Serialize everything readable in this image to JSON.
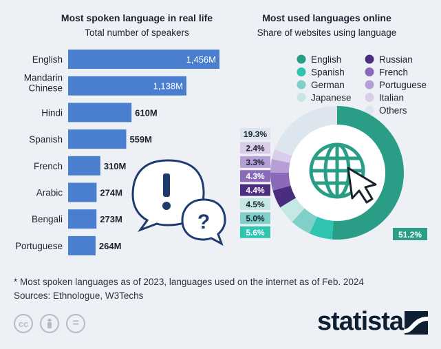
{
  "chart_data": [
    {
      "type": "bar",
      "orientation": "horizontal",
      "title": "Most spoken language in real life",
      "subtitle": "Total number of speakers",
      "categories": [
        "English",
        "Mandarin Chinese",
        "Hindi",
        "Spanish",
        "French",
        "Arabic",
        "Bengali",
        "Portuguese"
      ],
      "category_lines": [
        [
          "English"
        ],
        [
          "Mandarin",
          "Chinese"
        ],
        [
          "Hindi"
        ],
        [
          "Spanish"
        ],
        [
          "French"
        ],
        [
          "Arabic"
        ],
        [
          "Bengali"
        ],
        [
          "Portuguese"
        ]
      ],
      "values": [
        1456,
        1138,
        610,
        559,
        310,
        274,
        273,
        264
      ],
      "value_labels": [
        "1,456M",
        "1,138M",
        "610M",
        "559M",
        "310M",
        "274M",
        "273M",
        "264M"
      ],
      "color": "#4a7fcf"
    },
    {
      "type": "pie",
      "donut": true,
      "title": "Most used languages online",
      "subtitle": "Share of websites using language",
      "labels": [
        "English",
        "Spanish",
        "German",
        "Japanese",
        "Russian",
        "French",
        "Portuguese",
        "Italian",
        "Others"
      ],
      "values": [
        51.2,
        5.6,
        5.0,
        4.5,
        4.4,
        4.3,
        3.3,
        2.4,
        19.3
      ],
      "value_labels": [
        "51.2%",
        "5.6%",
        "5.0%",
        "4.5%",
        "4.4%",
        "4.3%",
        "3.3%",
        "2.4%",
        "19.3%"
      ],
      "colors": [
        "#2a9d86",
        "#2ec4b0",
        "#7fd0c8",
        "#c5e8e5",
        "#4b2d7f",
        "#8a6ab8",
        "#b59fd6",
        "#d9cdea",
        "#dde6ee"
      ],
      "legend_placement": "top"
    }
  ],
  "footer": {
    "note": "* Most spoken languages as of 2023, languages used on the internet as of Feb. 2024",
    "sources": "Sources: Ethnologue, W3Techs"
  },
  "branding": {
    "name": "statista",
    "license_icons": [
      "cc",
      "by",
      "nd"
    ],
    "license_icon_text": [
      "cc",
      "="
    ]
  },
  "icons": [
    "exclamation-speech-bubble-icon",
    "question-speech-bubble-icon",
    "globe-icon",
    "cursor-pointer-icon"
  ]
}
